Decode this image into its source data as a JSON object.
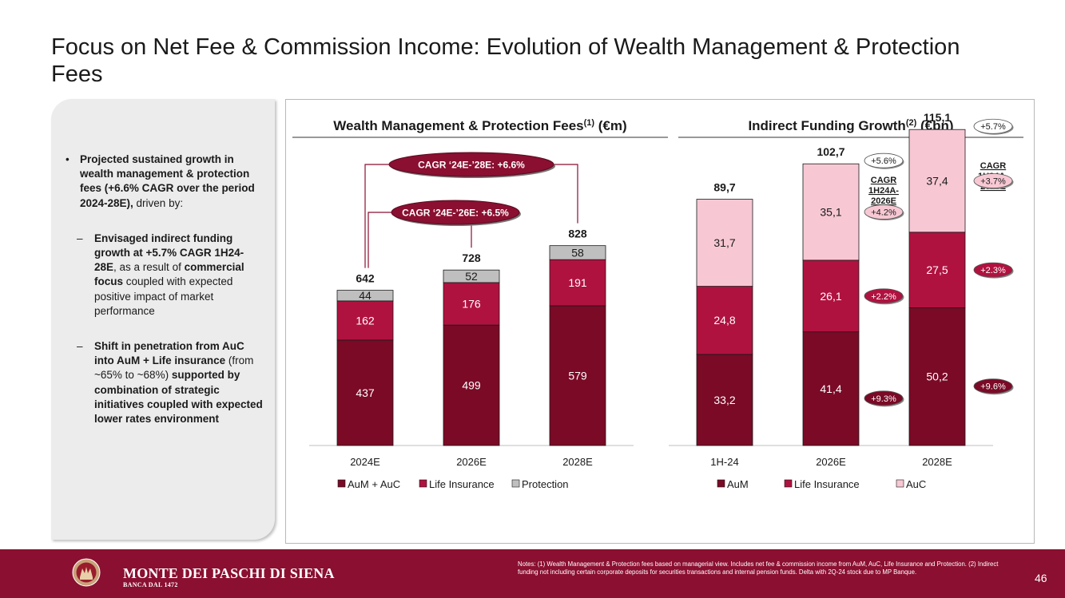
{
  "title": "Focus on Net Fee & Commission Income: Evolution of Wealth Management & Protection Fees",
  "sidebar": {
    "bullet1_bold": "Projected sustained growth in wealth management & protection fees (+6.6% CAGR over the period 2024-28E),",
    "bullet1_rest": " driven by:",
    "dash1_bold1": "Envisaged indirect funding growth at +5.7% CAGR 1H24-28E",
    "dash1_mid": ", as a result of ",
    "dash1_bold2": "commercial focus",
    "dash1_rest": " coupled with expected positive impact of market performance",
    "dash2_bold1": "Shift in penetration from AuC into AuM + Life insurance",
    "dash2_mid": " (from ~65% to ~68%) ",
    "dash2_bold2": "supported by combination of strategic initiatives coupled with expected lower rates environment"
  },
  "chart_data": [
    {
      "type": "bar",
      "stacked": true,
      "title": "Wealth Management & Protection Fees",
      "title_sup": "(1)",
      "title_unit": " (€m)",
      "categories": [
        "2024E",
        "2026E",
        "2028E"
      ],
      "series": [
        {
          "name": "AuM + AuC",
          "values": [
            437,
            499,
            579
          ],
          "labels": [
            "437",
            "499",
            "579"
          ],
          "color": "#7a0a26",
          "text_color": "#ffffff"
        },
        {
          "name": "Life Insurance",
          "values": [
            162,
            176,
            191
          ],
          "labels": [
            "162",
            "176",
            "191"
          ],
          "color": "#b0123f",
          "text_color": "#ffffff"
        },
        {
          "name": "Protection",
          "values": [
            44,
            52,
            58
          ],
          "labels": [
            "44",
            "52",
            "58"
          ],
          "color": "#bfbfbf",
          "text_color": "#1a1a1a"
        }
      ],
      "totals": [
        "642",
        "728",
        "828"
      ],
      "ylim": [
        0,
        900
      ],
      "annotations": [
        {
          "text": "CAGR ‘24E-’28E: +6.6%",
          "from": "2024E",
          "to": "2028E"
        },
        {
          "text": "CAGR ‘24E-’26E: +6.5%",
          "from": "2024E",
          "to": "2026E"
        }
      ],
      "legend_position": "bottom"
    },
    {
      "type": "bar",
      "stacked": true,
      "title": "Indirect Funding Growth",
      "title_sup": "(2)",
      "title_unit": " (€bn)",
      "categories": [
        "1H-24",
        "2026E",
        "2028E"
      ],
      "series": [
        {
          "name": "AuM",
          "values": [
            33.2,
            41.4,
            50.2
          ],
          "labels": [
            "33,2",
            "41,4",
            "50,2"
          ],
          "color": "#7a0a26",
          "text_color": "#ffffff"
        },
        {
          "name": "Life Insurance",
          "values": [
            24.8,
            26.1,
            27.5
          ],
          "labels": [
            "24,8",
            "26,1",
            "27,5"
          ],
          "color": "#b0123f",
          "text_color": "#ffffff"
        },
        {
          "name": "AuC",
          "values": [
            31.7,
            35.1,
            37.4
          ],
          "labels": [
            "31,7",
            "35,1",
            "37,4"
          ],
          "color": "#f7c8d4",
          "text_color": "#1a1a1a"
        }
      ],
      "totals": [
        "89,7",
        "102,7",
        "115,1"
      ],
      "ylim": [
        0,
        130
      ],
      "cagr_headers": [
        {
          "text": "CAGR 1H24A-2026E",
          "category": "2026E"
        },
        {
          "text": "CAGR 1H24A-2028E",
          "category": "2028E"
        }
      ],
      "cagr_badges": [
        {
          "category": "2026E",
          "series": "Total",
          "text": "+5.6%",
          "fill": "#ffffff",
          "text_color": "#1a1a1a"
        },
        {
          "category": "2026E",
          "series": "AuC",
          "text": "+4.2%",
          "fill": "#f7c8d4",
          "text_color": "#1a1a1a"
        },
        {
          "category": "2026E",
          "series": "Life Insurance",
          "text": "+2.2%",
          "fill": "#b0123f",
          "text_color": "#ffffff"
        },
        {
          "category": "2026E",
          "series": "AuM",
          "text": "+9.3%",
          "fill": "#7a0a26",
          "text_color": "#ffffff"
        },
        {
          "category": "2028E",
          "series": "Total",
          "text": "+5.7%",
          "fill": "#ffffff",
          "text_color": "#1a1a1a"
        },
        {
          "category": "2028E",
          "series": "AuC",
          "text": "+3.7%",
          "fill": "#f7c8d4",
          "text_color": "#1a1a1a"
        },
        {
          "category": "2028E",
          "series": "Life Insurance",
          "text": "+2.3%",
          "fill": "#b0123f",
          "text_color": "#ffffff"
        },
        {
          "category": "2028E",
          "series": "AuM",
          "text": "+9.6%",
          "fill": "#7a0a26",
          "text_color": "#ffffff"
        }
      ],
      "legend_position": "bottom"
    }
  ],
  "footer": {
    "brand": "MONTE DEI PASCHI DI SIENA",
    "brand_sub": "BANCA DAL 1472",
    "notes": "Notes: (1) Wealth Management & Protection fees based on managerial view. Includes net fee & commission income from AuM, AuC, Life Insurance and Protection. (2) Indirect funding not including certain corporate deposits for securities transactions and internal pension funds. Delta with 2Q-24 stock due to MP Banque.",
    "page_number": "46"
  },
  "colors": {
    "brand": "#8a0f30",
    "aum": "#7a0a26",
    "life": "#b0123f",
    "protection": "#bfbfbf",
    "auc": "#f7c8d4"
  }
}
